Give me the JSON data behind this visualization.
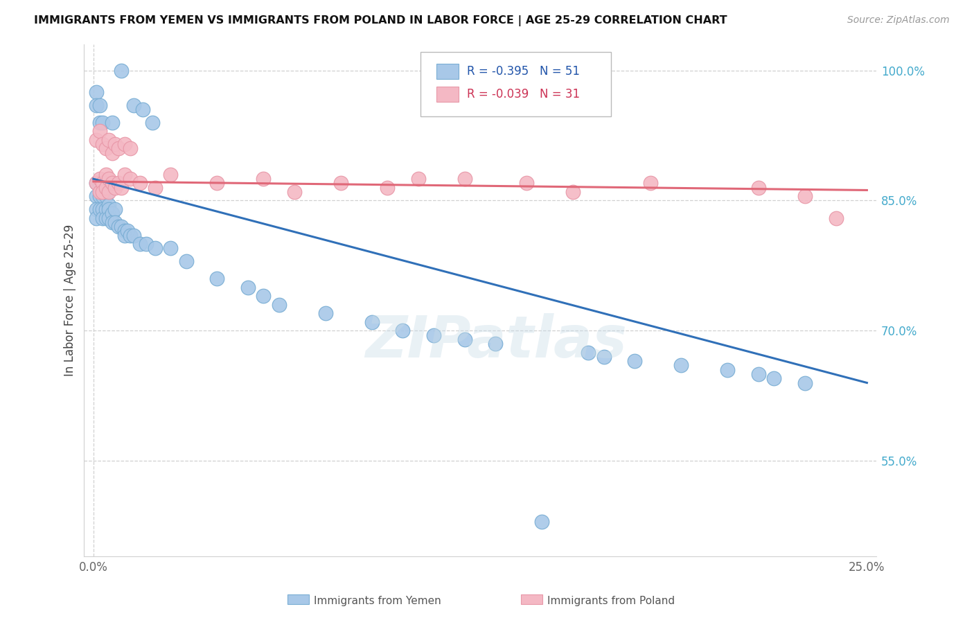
{
  "title": "IMMIGRANTS FROM YEMEN VS IMMIGRANTS FROM POLAND IN LABOR FORCE | AGE 25-29 CORRELATION CHART",
  "source": "Source: ZipAtlas.com",
  "ylabel": "In Labor Force | Age 25-29",
  "xlim": [
    -0.003,
    0.253
  ],
  "ylim": [
    0.44,
    1.03
  ],
  "ytick_positions": [
    0.55,
    0.7,
    0.85,
    1.0
  ],
  "ytick_labels": [
    "55.0%",
    "70.0%",
    "85.0%",
    "100.0%"
  ],
  "yemen_color": "#a8c8e8",
  "poland_color": "#f4b8c4",
  "yemen_edge": "#7aaed4",
  "poland_edge": "#e898a8",
  "blue_line_color": "#3070b8",
  "pink_line_color": "#e06878",
  "watermark": "ZIPatlas",
  "legend_r_yemen": "R = -0.395",
  "legend_n_yemen": "N = 51",
  "legend_r_poland": "R = -0.039",
  "legend_n_poland": "N = 31",
  "yemen_x": [
    0.001,
    0.001,
    0.001,
    0.001,
    0.002,
    0.002,
    0.002,
    0.003,
    0.003,
    0.003,
    0.004,
    0.004,
    0.004,
    0.005,
    0.005,
    0.005,
    0.006,
    0.006,
    0.007,
    0.007,
    0.008,
    0.009,
    0.01,
    0.01,
    0.011,
    0.012,
    0.013,
    0.015,
    0.017,
    0.02,
    0.025,
    0.03,
    0.04,
    0.05,
    0.055,
    0.06,
    0.075,
    0.09,
    0.1,
    0.11,
    0.12,
    0.13,
    0.145,
    0.16,
    0.165,
    0.175,
    0.19,
    0.205,
    0.215,
    0.22,
    0.23
  ],
  "yemen_y": [
    0.87,
    0.855,
    0.84,
    0.83,
    0.87,
    0.855,
    0.84,
    0.855,
    0.84,
    0.83,
    0.855,
    0.84,
    0.83,
    0.845,
    0.84,
    0.83,
    0.835,
    0.825,
    0.84,
    0.825,
    0.82,
    0.82,
    0.815,
    0.81,
    0.815,
    0.81,
    0.81,
    0.8,
    0.8,
    0.795,
    0.795,
    0.78,
    0.76,
    0.75,
    0.74,
    0.73,
    0.72,
    0.71,
    0.7,
    0.695,
    0.69,
    0.685,
    0.48,
    0.675,
    0.67,
    0.665,
    0.66,
    0.655,
    0.65,
    0.645,
    0.64
  ],
  "yemen_x_top": [
    0.001,
    0.001,
    0.002,
    0.002,
    0.003,
    0.006,
    0.009,
    0.013,
    0.016,
    0.019
  ],
  "yemen_y_top": [
    0.975,
    0.96,
    0.96,
    0.94,
    0.94,
    0.94,
    1.0,
    0.96,
    0.955,
    0.94
  ],
  "poland_x": [
    0.001,
    0.002,
    0.002,
    0.003,
    0.003,
    0.004,
    0.004,
    0.005,
    0.005,
    0.006,
    0.007,
    0.008,
    0.009,
    0.01,
    0.012,
    0.015,
    0.02,
    0.025,
    0.04,
    0.055,
    0.065,
    0.08,
    0.095,
    0.105,
    0.12,
    0.14,
    0.155,
    0.18,
    0.215,
    0.23,
    0.24
  ],
  "poland_y": [
    0.87,
    0.875,
    0.86,
    0.87,
    0.86,
    0.88,
    0.865,
    0.875,
    0.86,
    0.87,
    0.865,
    0.87,
    0.865,
    0.88,
    0.875,
    0.87,
    0.865,
    0.88,
    0.87,
    0.875,
    0.86,
    0.87,
    0.865,
    0.875,
    0.875,
    0.87,
    0.86,
    0.87,
    0.865,
    0.855,
    0.83
  ],
  "poland_x_top": [
    0.001,
    0.002,
    0.003,
    0.004,
    0.005,
    0.006,
    0.007,
    0.008,
    0.01,
    0.012
  ],
  "poland_y_top": [
    0.92,
    0.93,
    0.915,
    0.91,
    0.92,
    0.905,
    0.915,
    0.91,
    0.915,
    0.91
  ],
  "blue_line_x0": 0.0,
  "blue_line_y0": 0.875,
  "blue_line_x1": 0.25,
  "blue_line_y1": 0.64,
  "pink_line_x0": 0.0,
  "pink_line_y0": 0.872,
  "pink_line_x1": 0.25,
  "pink_line_y1": 0.862
}
